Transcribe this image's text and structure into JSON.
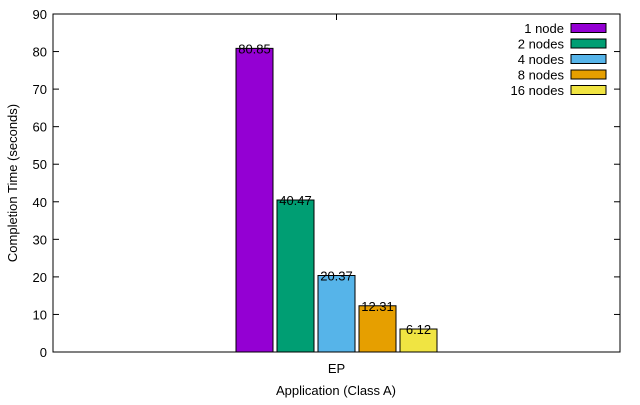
{
  "chart_data": {
    "type": "bar",
    "title": "",
    "xlabel": "Application (Class A)",
    "ylabel": "Completion Time (seconds)",
    "ylim": [
      0,
      90
    ],
    "yticks": [
      "0",
      "10",
      "20",
      "30",
      "40",
      "50",
      "60",
      "70",
      "80",
      "90"
    ],
    "categories": [
      "EP"
    ],
    "legend_position": "top-right",
    "grid": false,
    "series": [
      {
        "name": "1 node",
        "values": [
          80.85
        ],
        "labels": [
          "80.85"
        ],
        "color": "#9400d3"
      },
      {
        "name": "2 nodes",
        "values": [
          40.47
        ],
        "labels": [
          "40.47"
        ],
        "color": "#009e73"
      },
      {
        "name": "4 nodes",
        "values": [
          20.37
        ],
        "labels": [
          "20.37"
        ],
        "color": "#56b4e9"
      },
      {
        "name": "8 nodes",
        "values": [
          12.31
        ],
        "labels": [
          "12.31"
        ],
        "color": "#e69f00"
      },
      {
        "name": "16 nodes",
        "values": [
          6.12
        ],
        "labels": [
          "6.12"
        ],
        "color": "#f0e442"
      }
    ]
  }
}
